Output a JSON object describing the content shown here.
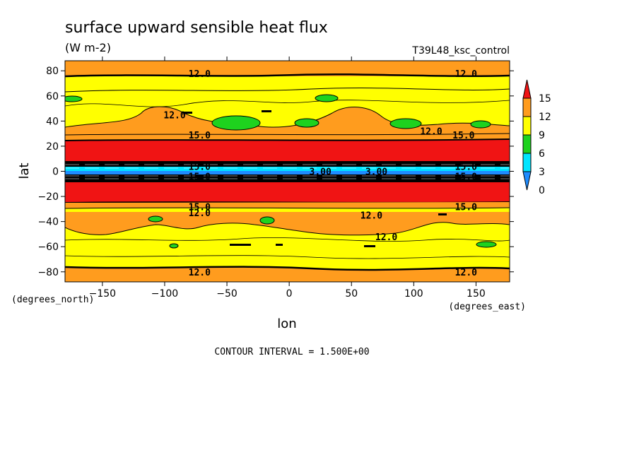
{
  "chart_data": {
    "type": "heatmap",
    "title": "surface upward sensible heat flux",
    "units": "(W m-2)",
    "run_label": "T39L48_ksc_control",
    "xlabel": "lon",
    "ylabel": "lat",
    "x_unit_label": "(degrees_east)",
    "y_unit_label": "(degrees_north)",
    "xlim": [
      -180,
      177
    ],
    "ylim": [
      -88,
      88
    ],
    "xticks": [
      -150,
      -100,
      -50,
      0,
      50,
      100,
      150
    ],
    "yticks": [
      -80,
      -60,
      -40,
      -20,
      0,
      20,
      40,
      60,
      80
    ],
    "contour_interval_text": "CONTOUR INTERVAL = 1.500E+00",
    "colorbar": {
      "labels": [
        "0",
        "3",
        "6",
        "9",
        "12",
        "15"
      ],
      "colors": [
        "#1e8cff",
        "#00e5ff",
        "#1ed21e",
        "#ffff00",
        "#ff9c1e",
        "#f01414"
      ]
    },
    "contour_labels": [
      {
        "text": "12.0",
        "lon": -72,
        "lat": 78
      },
      {
        "text": "12.0",
        "lon": 142,
        "lat": 78
      },
      {
        "text": "12.0",
        "lon": -92,
        "lat": 45
      },
      {
        "text": "15.0",
        "lon": -72,
        "lat": 29
      },
      {
        "text": "12.0",
        "lon": 114,
        "lat": 32
      },
      {
        "text": "15.0",
        "lon": 140,
        "lat": 29
      },
      {
        "text": "15.0",
        "lon": -72,
        "lat": 4
      },
      {
        "text": "15.0",
        "lon": 142,
        "lat": 4
      },
      {
        "text": "3.00",
        "lon": 25,
        "lat": 0
      },
      {
        "text": "3.00",
        "lon": 70,
        "lat": 0
      },
      {
        "text": "15.0",
        "lon": -72,
        "lat": -4
      },
      {
        "text": "15.0",
        "lon": 142,
        "lat": -4
      },
      {
        "text": "15.0",
        "lon": -72,
        "lat": -28
      },
      {
        "text": "12.0",
        "lon": -72,
        "lat": -33
      },
      {
        "text": "15.0",
        "lon": 142,
        "lat": -28
      },
      {
        "text": "12.0",
        "lon": 66,
        "lat": -35
      },
      {
        "text": "12.0",
        "lon": 78,
        "lat": -52
      },
      {
        "text": "12.0",
        "lon": -72,
        "lat": -80
      },
      {
        "text": "12.0",
        "lon": 142,
        "lat": -80
      }
    ],
    "zonal_bands": [
      {
        "lat_min": 76,
        "lat_max": 88,
        "level": "12-15"
      },
      {
        "lat_min": 64,
        "lat_max": 76,
        "level": "9-12"
      },
      {
        "lat_min": 30,
        "lat_max": 64,
        "level": "9-12"
      },
      {
        "lat_min": 25,
        "lat_max": 30,
        "level": "12-15"
      },
      {
        "lat_min": 5,
        "lat_max": 25,
        "level": ">15"
      },
      {
        "lat_min": -5,
        "lat_max": 5,
        "level": "<3 with dense contours"
      },
      {
        "lat_min": -25,
        "lat_max": -5,
        "level": ">15"
      },
      {
        "lat_min": -30,
        "lat_max": -25,
        "level": "12-15"
      },
      {
        "lat_min": -76,
        "lat_max": -30,
        "level": "9-12"
      },
      {
        "lat_min": -88,
        "lat_max": -76,
        "level": "12-15"
      }
    ]
  }
}
